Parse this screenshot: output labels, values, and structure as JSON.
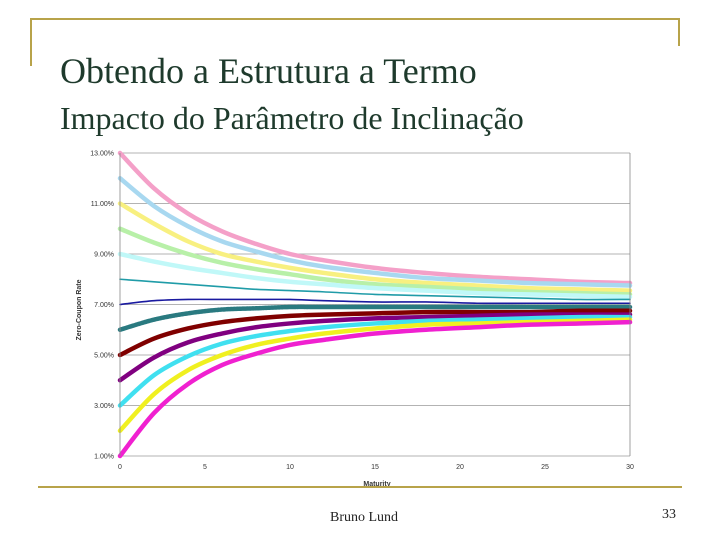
{
  "slide": {
    "title": "Obtendo a Estrutura a Termo",
    "subtitle": "Impacto do Parâmetro de Inclinação",
    "footer_author": "Bruno Lund",
    "page_number": "33"
  },
  "chart_data": {
    "type": "line",
    "title": "",
    "xlabel": "Maturity",
    "ylabel": "Zero-Coupon Rate",
    "xlim": [
      0,
      30
    ],
    "ylim": [
      0.01,
      0.13
    ],
    "x_ticks": [
      "0",
      "5",
      "10",
      "15",
      "20",
      "25",
      "30"
    ],
    "y_ticks": [
      "1.00%",
      "3.00%",
      "5.00%",
      "7.00%",
      "9.00%",
      "11.00%",
      "13.00%"
    ],
    "grid": "horizontal",
    "x": [
      0,
      2,
      4,
      6,
      8,
      10,
      12,
      15,
      18,
      21,
      24,
      27,
      30
    ],
    "series": [
      {
        "color": "#f4a0c8",
        "values": [
          13.0,
          11.6,
          10.6,
          9.9,
          9.4,
          9.0,
          8.75,
          8.45,
          8.25,
          8.1,
          8.0,
          7.9,
          7.85
        ]
      },
      {
        "color": "#a8d8f0",
        "values": [
          12.0,
          10.9,
          10.1,
          9.5,
          9.1,
          8.75,
          8.5,
          8.25,
          8.05,
          7.95,
          7.85,
          7.8,
          7.75
        ]
      },
      {
        "color": "#f8f080",
        "values": [
          11.0,
          10.2,
          9.5,
          9.0,
          8.7,
          8.45,
          8.25,
          8.0,
          7.85,
          7.75,
          7.65,
          7.6,
          7.55
        ]
      },
      {
        "color": "#b8f0a8",
        "values": [
          10.0,
          9.45,
          9.0,
          8.65,
          8.4,
          8.2,
          8.0,
          7.8,
          7.7,
          7.6,
          7.5,
          7.45,
          7.4
        ]
      },
      {
        "color": "#c0f8f8",
        "values": [
          9.0,
          8.7,
          8.45,
          8.25,
          8.05,
          7.9,
          7.8,
          7.65,
          7.55,
          7.45,
          7.4,
          7.35,
          7.3
        ]
      },
      {
        "color": "#209ca8",
        "values": [
          8.0,
          7.9,
          7.8,
          7.7,
          7.6,
          7.55,
          7.5,
          7.4,
          7.35,
          7.3,
          7.25,
          7.2,
          7.2
        ]
      },
      {
        "color": "#1a1aa0",
        "values": [
          7.0,
          7.15,
          7.2,
          7.2,
          7.2,
          7.2,
          7.15,
          7.1,
          7.1,
          7.05,
          7.05,
          7.05,
          7.05
        ]
      },
      {
        "color": "#2a7a80",
        "values": [
          6.0,
          6.4,
          6.65,
          6.8,
          6.85,
          6.9,
          6.9,
          6.9,
          6.9,
          6.9,
          6.9,
          6.9,
          6.9
        ]
      },
      {
        "color": "#800000",
        "values": [
          5.0,
          5.65,
          6.05,
          6.3,
          6.45,
          6.55,
          6.6,
          6.65,
          6.7,
          6.7,
          6.7,
          6.75,
          6.75
        ]
      },
      {
        "color": "#800080",
        "values": [
          4.0,
          4.9,
          5.5,
          5.85,
          6.1,
          6.25,
          6.35,
          6.45,
          6.5,
          6.55,
          6.6,
          6.6,
          6.6
        ]
      },
      {
        "color": "#40e0f0",
        "values": [
          3.0,
          4.2,
          4.95,
          5.45,
          5.75,
          5.95,
          6.1,
          6.25,
          6.35,
          6.4,
          6.45,
          6.5,
          6.5
        ]
      },
      {
        "color": "#f0f020",
        "values": [
          2.0,
          3.45,
          4.4,
          5.0,
          5.4,
          5.65,
          5.85,
          6.05,
          6.2,
          6.25,
          6.3,
          6.35,
          6.4
        ]
      },
      {
        "color": "#f020d0",
        "values": [
          1.0,
          2.7,
          3.85,
          4.6,
          5.05,
          5.4,
          5.6,
          5.85,
          6.0,
          6.1,
          6.2,
          6.25,
          6.3
        ]
      }
    ]
  }
}
